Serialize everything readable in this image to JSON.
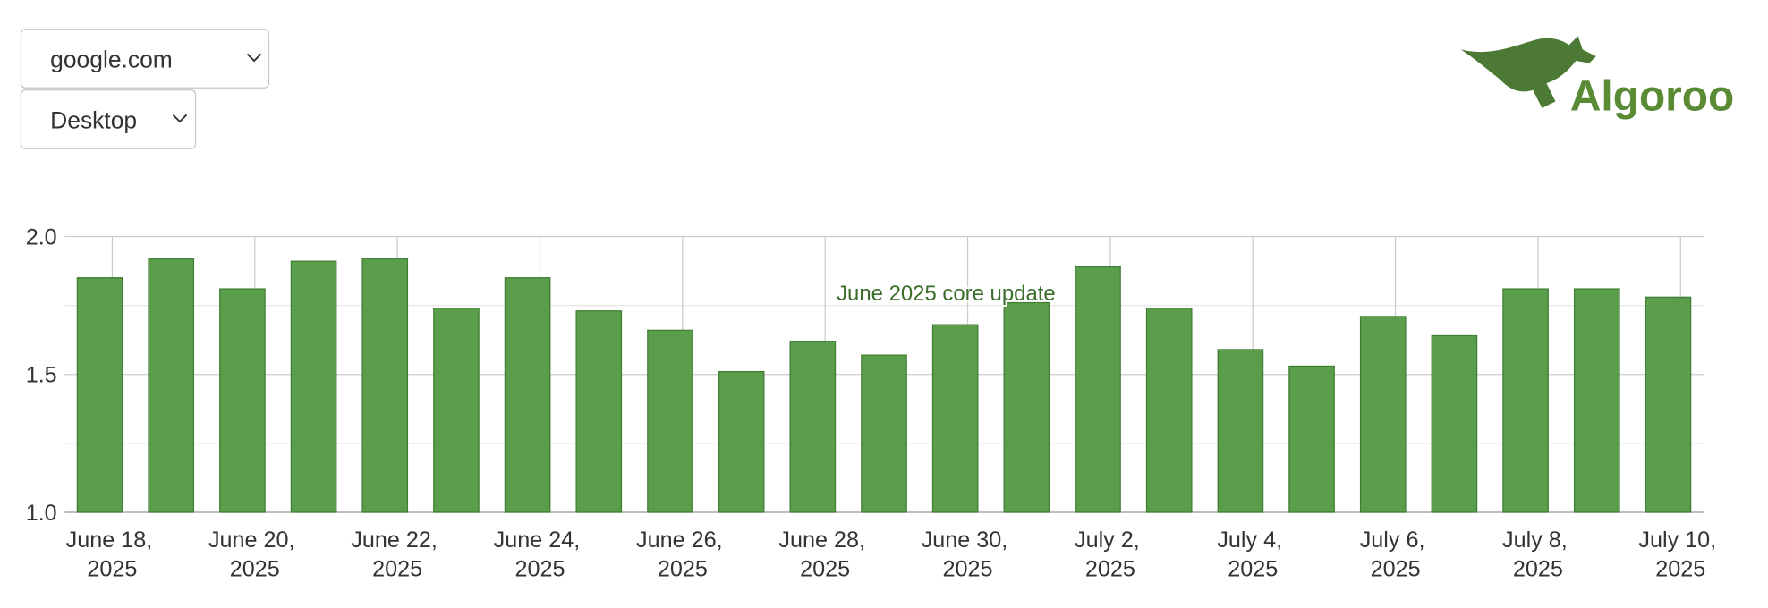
{
  "controls": {
    "site": "google.com",
    "device": "Desktop"
  },
  "logo": "Algoroo",
  "chart_data": {
    "type": "bar",
    "annotation": "June 2025 core update",
    "categories": [
      "June 18, 2025",
      null,
      "June 20, 2025",
      null,
      "June 22, 2025",
      null,
      "June 24, 2025",
      null,
      "June 26, 2025",
      null,
      "June 28, 2025",
      null,
      "June 30, 2025",
      null,
      "July 2, 2025",
      null,
      "July 4, 2025",
      null,
      "July 6, 2025",
      null,
      "July 8, 2025",
      null,
      "July 10, 2025"
    ],
    "values": [
      1.85,
      1.92,
      1.81,
      1.91,
      1.92,
      1.74,
      1.85,
      1.73,
      1.66,
      1.51,
      1.62,
      1.57,
      1.68,
      1.76,
      1.89,
      1.74,
      1.59,
      1.53,
      1.71,
      1.64,
      1.81,
      1.81,
      1.78
    ],
    "color": "#5a9e4b",
    "ylim": [
      1,
      2
    ],
    "yticks": [
      {
        "value": 1,
        "label": "1.0"
      },
      1.5,
      {
        "value": 2,
        "label": "2.0"
      }
    ],
    "minor_yticks": [
      1.25,
      1.75
    ],
    "grid": true
  }
}
